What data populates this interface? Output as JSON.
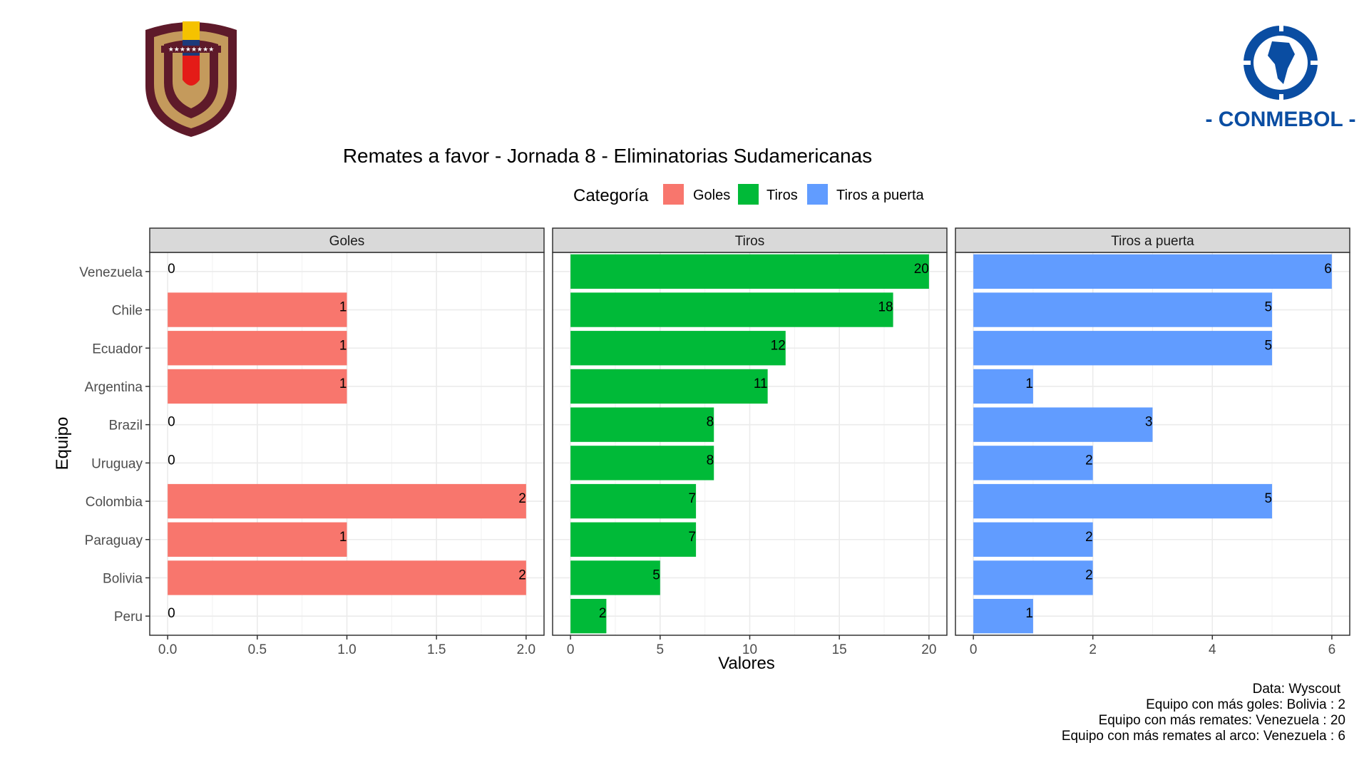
{
  "chart_data": {
    "type": "bar",
    "orientation": "horizontal",
    "title": "Remates a favor - Jornada 8 - Eliminatorias Sudamericanas",
    "xlabel": "Valores",
    "ylabel": "Equipo",
    "legend": {
      "title": "Categoría",
      "position": "top",
      "entries": [
        {
          "label": "Goles",
          "color": "#F8766D"
        },
        {
          "label": "Tiros",
          "color": "#00BA38"
        },
        {
          "label": "Tiros a puerta",
          "color": "#619CFF"
        }
      ]
    },
    "categories": [
      "Venezuela",
      "Chile",
      "Ecuador",
      "Argentina",
      "Brazil",
      "Uruguay",
      "Colombia",
      "Paraguay",
      "Bolivia",
      "Peru"
    ],
    "grid": true,
    "panels": [
      {
        "name": "Goles",
        "color": "#F8766D",
        "values": [
          0,
          1,
          1,
          1,
          0,
          0,
          2,
          1,
          2,
          0
        ],
        "xlim": [
          0,
          2
        ],
        "ticks": [
          0,
          0.5,
          1,
          1.5,
          2
        ],
        "tick_labels": [
          "0.0",
          "0.5",
          "1.0",
          "1.5",
          "2.0"
        ]
      },
      {
        "name": "Tiros",
        "color": "#00BA38",
        "values": [
          20,
          18,
          12,
          11,
          8,
          8,
          7,
          7,
          5,
          2
        ],
        "xlim": [
          0,
          20
        ],
        "ticks": [
          0,
          5,
          10,
          15,
          20
        ],
        "tick_labels": [
          "0",
          "5",
          "10",
          "15",
          "20"
        ]
      },
      {
        "name": "Tiros a puerta",
        "color": "#619CFF",
        "values": [
          6,
          5,
          5,
          1,
          3,
          2,
          5,
          2,
          2,
          1
        ],
        "xlim": [
          0,
          6
        ],
        "ticks": [
          0,
          2,
          4,
          6
        ],
        "tick_labels": [
          "0",
          "2",
          "4",
          "6"
        ]
      }
    ]
  },
  "caption": [
    "Data: Wyscout ",
    "Equipo con más goles: Bolivia : 2",
    "Equipo con más remates: Venezuela : 20",
    "Equipo con más remates al arco: Venezuela : 6"
  ],
  "logos": {
    "left": {
      "name": "venezuela-federation-crest"
    },
    "right": {
      "name": "conmebol-logo",
      "text": "- CONMEBOL -"
    }
  }
}
